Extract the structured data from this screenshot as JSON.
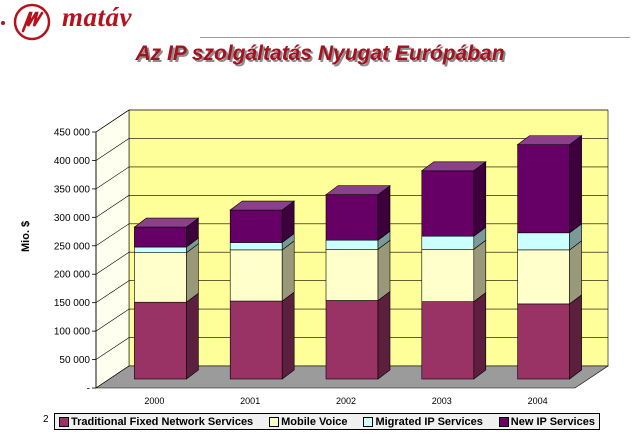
{
  "header": {
    "brand": "matáv",
    "title": "Az IP szolgáltatás Nyugat Európában",
    "corner_text": "2"
  },
  "colors": {
    "brand_red": "#b5121b",
    "back_wall": "#ffff99",
    "floor": "#9b9b9b"
  },
  "chart_data": {
    "type": "bar",
    "stacked": true,
    "three_d": true,
    "categories": [
      "2000",
      "2001",
      "2002",
      "2003",
      "2004"
    ],
    "ylabel": "Mio. $",
    "xlabel": "",
    "ylim": [
      0,
      450000
    ],
    "yticks": [
      0,
      50000,
      100000,
      150000,
      200000,
      250000,
      300000,
      350000,
      400000,
      450000
    ],
    "ytick_labels": [
      "-",
      "50 000",
      "100 000",
      "150 000",
      "200 000",
      "250 000",
      "300 000",
      "350 000",
      "400 000",
      "450 000"
    ],
    "grid": true,
    "legend_position": "bottom",
    "series": [
      {
        "name": "Traditional Fixed Network Services",
        "color": "#993366",
        "values": [
          135000,
          137000,
          138000,
          136000,
          132000
        ]
      },
      {
        "name": "Mobile Voice",
        "color": "#ffffcc",
        "values": [
          87000,
          90000,
          90000,
          92000,
          95000
        ]
      },
      {
        "name": "Migrated IP Services",
        "color": "#ccffff",
        "values": [
          10000,
          13000,
          16000,
          23000,
          30000
        ]
      },
      {
        "name": "New IP Services",
        "color": "#660066",
        "values": [
          35000,
          57000,
          80000,
          115000,
          155000
        ]
      }
    ]
  }
}
